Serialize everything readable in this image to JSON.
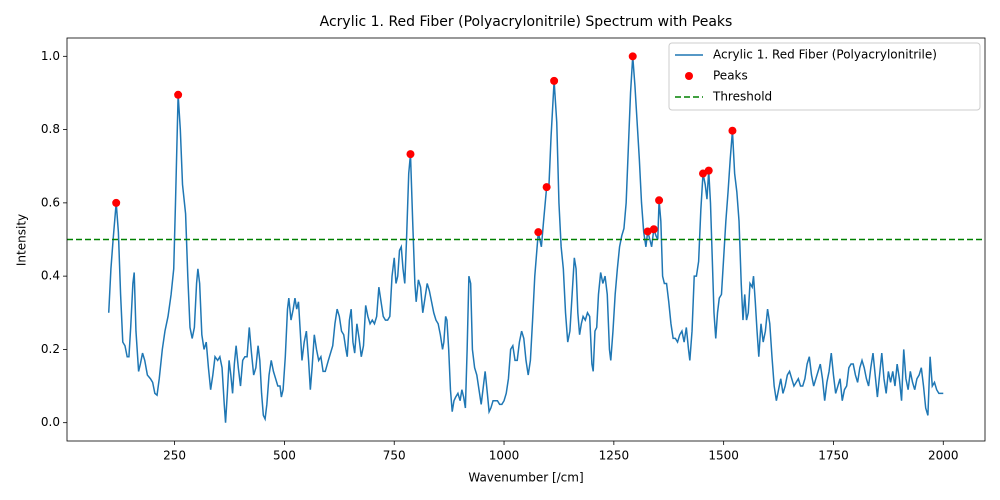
{
  "chart_data": {
    "type": "line",
    "title": "Acrylic 1. Red Fiber (Polyacrylonitrile) Spectrum with Peaks",
    "x_label": "Wavenumber [/cm]",
    "y_label": "Intensity",
    "xlim": [
      5,
      2095
    ],
    "ylim": [
      -0.05,
      1.05
    ],
    "xticks": [
      250,
      500,
      750,
      1000,
      1250,
      1500,
      1750,
      2000
    ],
    "yticks": [
      {
        "value": 0,
        "label": "0.0"
      },
      0.2,
      0.4,
      0.6,
      0.8,
      {
        "value": 1,
        "label": "1.0"
      }
    ],
    "legend": "upper right",
    "series": [
      {
        "name": "Acrylic 1. Red Fiber (Polyacrylonitrile)",
        "type": "line",
        "color": "#1f77b4",
        "x": [
          100,
          105,
          110,
          117,
          122,
          127,
          132,
          137,
          142,
          146,
          150,
          155,
          158,
          162,
          168,
          172,
          177,
          182,
          188,
          195,
          200,
          205,
          210,
          215,
          222,
          228,
          235,
          242,
          248,
          252,
          258,
          263,
          268,
          275,
          280,
          285,
          290,
          295,
          300,
          303,
          307,
          312,
          317,
          322,
          327,
          332,
          337,
          342,
          348,
          353,
          358,
          363,
          366,
          370,
          374,
          378,
          382,
          386,
          390,
          395,
          400,
          405,
          410,
          415,
          420,
          425,
          430,
          435,
          440,
          444,
          448,
          452,
          456,
          460,
          465,
          470,
          475,
          480,
          485,
          490,
          493,
          497,
          502,
          507,
          510,
          515,
          520,
          524,
          528,
          532,
          536,
          540,
          545,
          550,
          555,
          559,
          563,
          568,
          573,
          578,
          583,
          588,
          593,
          600,
          605,
          610,
          615,
          620,
          625,
          630,
          635,
          640,
          643,
          648,
          652,
          656,
          660,
          665,
          670,
          675,
          680,
          685,
          690,
          695,
          700,
          705,
          710,
          715,
          720,
          725,
          730,
          735,
          740,
          745,
          750,
          754,
          758,
          762,
          766,
          770,
          774,
          778,
          783,
          787,
          792,
          797,
          800,
          805,
          810,
          815,
          820,
          825,
          830,
          835,
          840,
          845,
          850,
          855,
          860,
          863,
          867,
          870,
          874,
          878,
          882,
          886,
          890,
          895,
          900,
          904,
          908,
          912,
          916,
          920,
          924,
          928,
          933,
          938,
          943,
          948,
          953,
          957,
          962,
          966,
          970,
          975,
          980,
          985,
          990,
          995,
          1000,
          1005,
          1010,
          1015,
          1020,
          1025,
          1030,
          1035,
          1040,
          1045,
          1050,
          1055,
          1060,
          1065,
          1070,
          1078,
          1085,
          1090,
          1097,
          1102,
          1107,
          1114,
          1120,
          1125,
          1130,
          1135,
          1140,
          1145,
          1150,
          1155,
          1160,
          1164,
          1168,
          1172,
          1176,
          1180,
          1185,
          1190,
          1195,
          1200,
          1203,
          1207,
          1211,
          1215,
          1220,
          1225,
          1230,
          1235,
          1240,
          1243,
          1248,
          1253,
          1258,
          1263,
          1268,
          1273,
          1278,
          1283,
          1288,
          1293,
          1298,
          1303,
          1308,
          1313,
          1318,
          1323,
          1327,
          1332,
          1336,
          1341,
          1346,
          1350,
          1353,
          1357,
          1361,
          1365,
          1370,
          1375,
          1380,
          1385,
          1390,
          1395,
          1400,
          1405,
          1410,
          1415,
          1420,
          1423,
          1428,
          1433,
          1438,
          1443,
          1448,
          1453,
          1458,
          1462,
          1466,
          1470,
          1474,
          1478,
          1482,
          1486,
          1490,
          1495,
          1500,
          1505,
          1510,
          1515,
          1520,
          1525,
          1530,
          1535,
          1540,
          1544,
          1548,
          1552,
          1556,
          1560,
          1565,
          1568,
          1572,
          1576,
          1580,
          1585,
          1590,
          1595,
          1600,
          1605,
          1610,
          1615,
          1620,
          1625,
          1630,
          1635,
          1640,
          1645,
          1650,
          1655,
          1660,
          1665,
          1670,
          1675,
          1680,
          1685,
          1690,
          1695,
          1700,
          1705,
          1710,
          1715,
          1720,
          1725,
          1730,
          1735,
          1740,
          1745,
          1750,
          1755,
          1760,
          1765,
          1770,
          1775,
          1780,
          1785,
          1790,
          1795,
          1800,
          1805,
          1810,
          1815,
          1820,
          1825,
          1830,
          1835,
          1840,
          1845,
          1850,
          1855,
          1860,
          1865,
          1870,
          1875,
          1880,
          1885,
          1890,
          1895,
          1900,
          1905,
          1910,
          1915,
          1920,
          1925,
          1930,
          1935,
          1940,
          1945,
          1950,
          1955,
          1960,
          1965,
          1970,
          1975,
          1980,
          1985,
          1990,
          2000
        ],
        "values": [
          0.3,
          0.42,
          0.5,
          0.6,
          0.52,
          0.35,
          0.22,
          0.21,
          0.18,
          0.18,
          0.26,
          0.38,
          0.41,
          0.25,
          0.14,
          0.16,
          0.19,
          0.17,
          0.13,
          0.12,
          0.11,
          0.08,
          0.075,
          0.12,
          0.2,
          0.25,
          0.29,
          0.35,
          0.42,
          0.6,
          0.895,
          0.8,
          0.65,
          0.57,
          0.4,
          0.26,
          0.23,
          0.26,
          0.38,
          0.42,
          0.38,
          0.24,
          0.2,
          0.22,
          0.15,
          0.09,
          0.13,
          0.18,
          0.17,
          0.18,
          0.15,
          0.05,
          0.0,
          0.08,
          0.17,
          0.13,
          0.08,
          0.16,
          0.21,
          0.15,
          0.1,
          0.17,
          0.18,
          0.18,
          0.26,
          0.19,
          0.13,
          0.15,
          0.21,
          0.17,
          0.08,
          0.02,
          0.01,
          0.05,
          0.13,
          0.17,
          0.14,
          0.12,
          0.1,
          0.1,
          0.07,
          0.09,
          0.18,
          0.31,
          0.34,
          0.28,
          0.31,
          0.34,
          0.31,
          0.33,
          0.25,
          0.17,
          0.22,
          0.25,
          0.17,
          0.09,
          0.15,
          0.24,
          0.2,
          0.17,
          0.18,
          0.14,
          0.14,
          0.17,
          0.19,
          0.21,
          0.27,
          0.31,
          0.29,
          0.25,
          0.24,
          0.2,
          0.18,
          0.28,
          0.31,
          0.22,
          0.19,
          0.27,
          0.23,
          0.18,
          0.21,
          0.32,
          0.29,
          0.27,
          0.28,
          0.27,
          0.29,
          0.37,
          0.33,
          0.29,
          0.28,
          0.28,
          0.29,
          0.4,
          0.45,
          0.38,
          0.4,
          0.47,
          0.48,
          0.42,
          0.38,
          0.5,
          0.68,
          0.733,
          0.55,
          0.38,
          0.33,
          0.39,
          0.37,
          0.3,
          0.34,
          0.38,
          0.36,
          0.33,
          0.3,
          0.28,
          0.27,
          0.24,
          0.2,
          0.22,
          0.29,
          0.28,
          0.2,
          0.09,
          0.03,
          0.06,
          0.07,
          0.08,
          0.06,
          0.09,
          0.07,
          0.04,
          0.2,
          0.4,
          0.38,
          0.2,
          0.15,
          0.13,
          0.09,
          0.05,
          0.1,
          0.14,
          0.08,
          0.03,
          0.04,
          0.06,
          0.06,
          0.06,
          0.05,
          0.05,
          0.06,
          0.08,
          0.12,
          0.2,
          0.21,
          0.17,
          0.17,
          0.22,
          0.25,
          0.23,
          0.17,
          0.13,
          0.17,
          0.28,
          0.4,
          0.52,
          0.48,
          0.55,
          0.643,
          0.64,
          0.78,
          0.933,
          0.82,
          0.6,
          0.48,
          0.42,
          0.3,
          0.22,
          0.25,
          0.35,
          0.45,
          0.42,
          0.3,
          0.24,
          0.27,
          0.29,
          0.28,
          0.3,
          0.29,
          0.16,
          0.14,
          0.25,
          0.26,
          0.35,
          0.41,
          0.38,
          0.4,
          0.35,
          0.2,
          0.17,
          0.25,
          0.35,
          0.42,
          0.48,
          0.51,
          0.53,
          0.6,
          0.75,
          0.9,
          1.0,
          0.92,
          0.82,
          0.72,
          0.6,
          0.52,
          0.48,
          0.522,
          0.5,
          0.48,
          0.528,
          0.51,
          0.5,
          0.607,
          0.55,
          0.4,
          0.38,
          0.38,
          0.33,
          0.27,
          0.23,
          0.23,
          0.22,
          0.24,
          0.25,
          0.22,
          0.26,
          0.2,
          0.17,
          0.25,
          0.4,
          0.4,
          0.44,
          0.58,
          0.68,
          0.65,
          0.61,
          0.688,
          0.6,
          0.45,
          0.3,
          0.23,
          0.3,
          0.34,
          0.35,
          0.45,
          0.55,
          0.63,
          0.72,
          0.797,
          0.68,
          0.63,
          0.55,
          0.38,
          0.28,
          0.35,
          0.28,
          0.3,
          0.38,
          0.37,
          0.4,
          0.33,
          0.25,
          0.18,
          0.27,
          0.22,
          0.25,
          0.31,
          0.27,
          0.18,
          0.1,
          0.06,
          0.09,
          0.12,
          0.08,
          0.1,
          0.13,
          0.14,
          0.12,
          0.1,
          0.11,
          0.12,
          0.1,
          0.1,
          0.12,
          0.16,
          0.18,
          0.13,
          0.1,
          0.12,
          0.14,
          0.16,
          0.12,
          0.06,
          0.11,
          0.14,
          0.19,
          0.13,
          0.08,
          0.1,
          0.12,
          0.06,
          0.09,
          0.1,
          0.15,
          0.16,
          0.16,
          0.13,
          0.11,
          0.15,
          0.17,
          0.15,
          0.12,
          0.1,
          0.15,
          0.19,
          0.13,
          0.07,
          0.13,
          0.19,
          0.12,
          0.08,
          0.14,
          0.11,
          0.14,
          0.1,
          0.16,
          0.12,
          0.06,
          0.2,
          0.12,
          0.09,
          0.14,
          0.11,
          0.09,
          0.12,
          0.13,
          0.15,
          0.1,
          0.04,
          0.02,
          0.18,
          0.1,
          0.11,
          0.09,
          0.08,
          0.08
        ]
      },
      {
        "name": "Peaks",
        "type": "scatter",
        "color": "red",
        "x": [
          117,
          258,
          787,
          1078,
          1097,
          1114,
          1293,
          1327,
          1341,
          1353,
          1453,
          1466,
          1520
        ],
        "values": [
          0.6,
          0.895,
          0.733,
          0.52,
          0.643,
          0.933,
          1.0,
          0.522,
          0.528,
          0.607,
          0.68,
          0.688,
          0.797
        ]
      },
      {
        "name": "Threshold",
        "type": "hline",
        "color": "green",
        "values": [
          0.5
        ]
      }
    ]
  }
}
